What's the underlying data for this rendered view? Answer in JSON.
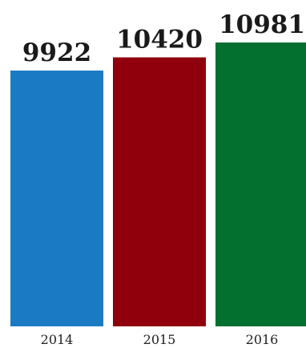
{
  "chart_data": {
    "type": "bar",
    "categories": [
      "2014",
      "2015",
      "2016"
    ],
    "values": [
      9922,
      10420,
      10981
    ],
    "value_labels": [
      "9922",
      "10420",
      "10981"
    ],
    "colors": [
      "#1a7bc4",
      "#8f000c",
      "#037030"
    ],
    "title": "",
    "xlabel": "",
    "ylabel": "",
    "grid": false,
    "legend": "none"
  }
}
